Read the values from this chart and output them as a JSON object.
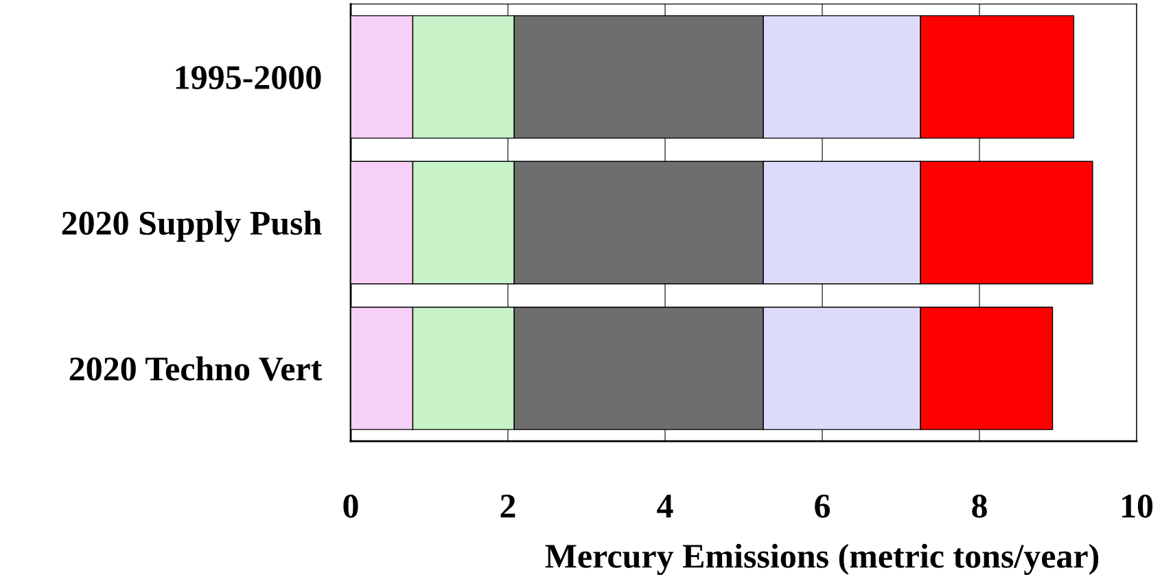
{
  "chart_data": {
    "type": "bar",
    "orientation": "horizontal",
    "stacked": true,
    "categories": [
      "1995-2000",
      "2020 Supply Push",
      "2020 Techno Vert"
    ],
    "series": [
      {
        "color": "#f6d0f6",
        "values": [
          0.79,
          0.79,
          0.79
        ]
      },
      {
        "color": "#c8f2c8",
        "values": [
          1.29,
          1.29,
          1.29
        ]
      },
      {
        "color": "#6e6e6e",
        "values": [
          3.17,
          3.17,
          3.17
        ]
      },
      {
        "color": "#dcdcfa",
        "values": [
          2.0,
          2.0,
          2.0
        ]
      },
      {
        "color": "#ff0000",
        "values": [
          1.95,
          2.19,
          1.68
        ]
      }
    ],
    "xlabel": "Mercury Emissions (metric tons/year)",
    "xlim": [
      0,
      10
    ],
    "xticks": [
      0,
      2,
      4,
      6,
      8,
      10
    ],
    "grid": "x"
  }
}
